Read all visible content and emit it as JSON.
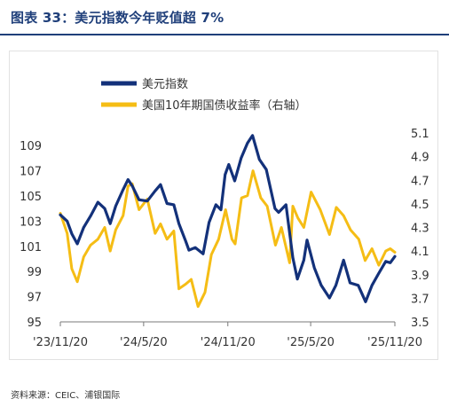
{
  "title": "图表  33：美元指数今年贬值超 7%",
  "source": "资料来源：CEIC、浦银国际",
  "chart_data": {
    "type": "line",
    "x_tick_labels": [
      "'23/11/20",
      "'24/5/20",
      "'24/11/20",
      "'25/5/20",
      "'25/11/20"
    ],
    "x_ticks": [
      "2023-11-20",
      "2024-05-20",
      "2024-11-20",
      "2025-05-20",
      "2025-11-20"
    ],
    "x_range": [
      "2023-11-20",
      "2025-11-20"
    ],
    "y_left": {
      "ticks": [
        "95",
        "97",
        "99",
        "101",
        "103",
        "105",
        "107",
        "109"
      ],
      "range": [
        95,
        110
      ]
    },
    "y_right": {
      "ticks": [
        "3.5",
        "3.7",
        "3.9",
        "4.1",
        "4.3",
        "4.5",
        "4.7",
        "4.9",
        "5.1"
      ],
      "range": [
        3.5,
        5.1
      ]
    },
    "legend_position": "top",
    "grid": false,
    "series": [
      {
        "name": "美元指数",
        "axis": "left",
        "color": "#13317a",
        "x": [
          "2023-11-20",
          "2023-12-05",
          "2023-12-15",
          "2023-12-27",
          "2024-01-10",
          "2024-01-25",
          "2024-02-10",
          "2024-02-25",
          "2024-03-08",
          "2024-03-20",
          "2024-04-05",
          "2024-04-16",
          "2024-04-25",
          "2024-05-10",
          "2024-05-28",
          "2024-06-14",
          "2024-06-26",
          "2024-07-10",
          "2024-07-25",
          "2024-08-05",
          "2024-08-20",
          "2024-08-27",
          "2024-09-10",
          "2024-09-27",
          "2024-10-10",
          "2024-10-25",
          "2024-11-05",
          "2024-11-14",
          "2024-11-22",
          "2024-12-05",
          "2024-12-19",
          "2025-01-02",
          "2025-01-13",
          "2025-01-28",
          "2025-02-12",
          "2025-03-03",
          "2025-03-11",
          "2025-03-27",
          "2025-04-11",
          "2025-04-21",
          "2025-05-05",
          "2025-05-12",
          "2025-05-28",
          "2025-06-12",
          "2025-06-30",
          "2025-07-14",
          "2025-07-31",
          "2025-08-14",
          "2025-09-01",
          "2025-09-17",
          "2025-10-01",
          "2025-10-15",
          "2025-10-31",
          "2025-11-10",
          "2025-11-20"
        ],
        "values": [
          103.5,
          103.0,
          102.0,
          101.2,
          102.5,
          103.4,
          104.5,
          104.0,
          102.8,
          104.2,
          105.5,
          106.3,
          105.8,
          104.7,
          104.6,
          105.4,
          105.9,
          104.4,
          104.3,
          102.8,
          101.4,
          100.7,
          100.9,
          100.4,
          102.9,
          104.3,
          103.9,
          106.7,
          107.5,
          106.2,
          108.0,
          109.2,
          109.8,
          107.9,
          107.1,
          104.0,
          103.7,
          104.3,
          100.1,
          98.4,
          99.9,
          101.5,
          99.3,
          97.9,
          96.9,
          97.9,
          99.9,
          98.1,
          97.9,
          96.6,
          97.9,
          98.8,
          99.8,
          99.7,
          100.2
        ]
      },
      {
        "name": "美国10年期国债收益率（右轴）",
        "axis": "right",
        "color": "#f5bd15",
        "x": [
          "2023-11-20",
          "2023-12-05",
          "2023-12-15",
          "2023-12-27",
          "2024-01-10",
          "2024-01-25",
          "2024-02-10",
          "2024-02-25",
          "2024-03-08",
          "2024-03-20",
          "2024-04-05",
          "2024-04-16",
          "2024-04-25",
          "2024-05-10",
          "2024-05-28",
          "2024-06-14",
          "2024-06-26",
          "2024-07-10",
          "2024-07-25",
          "2024-08-05",
          "2024-08-20",
          "2024-09-01",
          "2024-09-16",
          "2024-10-01",
          "2024-10-15",
          "2024-10-31",
          "2024-11-15",
          "2024-11-29",
          "2024-12-06",
          "2024-12-20",
          "2025-01-02",
          "2025-01-14",
          "2025-01-31",
          "2025-02-14",
          "2025-03-04",
          "2025-03-17",
          "2025-04-04",
          "2025-04-11",
          "2025-04-22",
          "2025-05-05",
          "2025-05-21",
          "2025-06-10",
          "2025-06-30",
          "2025-07-15",
          "2025-07-31",
          "2025-08-15",
          "2025-09-02",
          "2025-09-16",
          "2025-10-01",
          "2025-10-16",
          "2025-10-31",
          "2025-11-10",
          "2025-11-20"
        ],
        "values": [
          4.42,
          4.25,
          3.95,
          3.84,
          4.05,
          4.15,
          4.2,
          4.3,
          4.1,
          4.28,
          4.4,
          4.65,
          4.67,
          4.45,
          4.54,
          4.25,
          4.33,
          4.2,
          4.27,
          3.78,
          3.82,
          3.86,
          3.63,
          3.75,
          4.07,
          4.2,
          4.45,
          4.2,
          4.16,
          4.55,
          4.57,
          4.78,
          4.55,
          4.48,
          4.15,
          4.3,
          4.0,
          4.48,
          4.38,
          4.3,
          4.6,
          4.45,
          4.24,
          4.47,
          4.4,
          4.28,
          4.2,
          4.02,
          4.12,
          3.98,
          4.1,
          4.12,
          4.09
        ]
      }
    ]
  }
}
